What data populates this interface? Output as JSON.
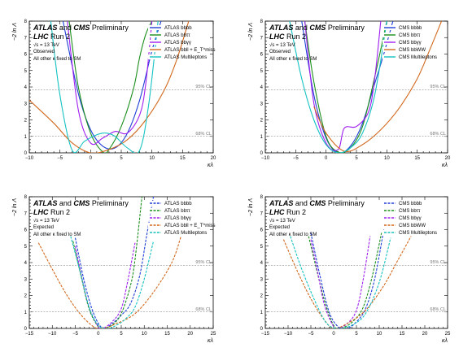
{
  "colors": {
    "bbbb": "#1f3fd6",
    "bbtautau": "#1a8f1a",
    "bbgammagamma": "#a020f0",
    "fourth": "#d2691e",
    "multileptons": "#15c2c2"
  },
  "chart_data": [
    {
      "type": "line",
      "panel": "top-left",
      "title_atlas": "ATLAS",
      "title_and": "and",
      "title_cms": "CMS",
      "title_prelim": "Preliminary",
      "title_lhc": "LHC",
      "title_run": "Run 2",
      "energy": "√s = 13 TeV",
      "status": "Observed",
      "note": "All other κ fixed to SM",
      "xlabel": "κλ",
      "ylabel": "−2 ln Λ",
      "xlim": [
        -10,
        20
      ],
      "ylim": [
        0,
        8
      ],
      "xticks": [
        "−10",
        "−5",
        "0",
        "5",
        "10",
        "15",
        "20"
      ],
      "yticks": [
        "0",
        "1",
        "2",
        "3",
        "4",
        "5",
        "6",
        "7",
        "8"
      ],
      "ref_lines": [
        {
          "y": 3.84,
          "label": "95% CL"
        },
        {
          "y": 1.0,
          "label": "68% CL"
        }
      ],
      "line_style": "solid",
      "legend": "top-right",
      "series": [
        {
          "name": "ATLAS bbbb",
          "key": "bbbb",
          "x": [
            -4.5,
            -2,
            0,
            2,
            4,
            6,
            8,
            10,
            11.5
          ],
          "y": [
            8,
            3.6,
            1.4,
            0.4,
            0.3,
            1.2,
            3.2,
            6.2,
            8
          ]
        },
        {
          "name": "ATLAS bbττ",
          "key": "bbtautau",
          "x": [
            -3.5,
            -2,
            0,
            2,
            3,
            5,
            7,
            8,
            9,
            10
          ],
          "y": [
            8,
            4.0,
            1.2,
            0.05,
            0.2,
            1.6,
            3.9,
            5.8,
            7.2,
            8
          ]
        },
        {
          "name": "ATLAS bbγγ",
          "key": "bbgammagamma",
          "x": [
            -3.8,
            -2,
            0,
            2,
            4,
            6,
            8,
            9,
            10
          ],
          "y": [
            8,
            2.6,
            0.6,
            0.9,
            1.3,
            1.2,
            2.3,
            4.2,
            8
          ]
        },
        {
          "name": "ATLAS bbll + E_T^miss",
          "key": "fourth",
          "x": [
            -10,
            -6,
            -3,
            0,
            3,
            6,
            9,
            12,
            14,
            16
          ],
          "y": [
            3.2,
            1.8,
            0.6,
            0.0,
            0.2,
            0.8,
            2.0,
            3.8,
            5.6,
            8
          ]
        },
        {
          "name": "ATLAS Multileptons",
          "key": "multileptons",
          "x": [
            -6.5,
            -5,
            -3,
            -1,
            1,
            2.5,
            4,
            6,
            8,
            9.5,
            11
          ],
          "y": [
            8,
            3.5,
            0.15,
            0.7,
            1.1,
            1.2,
            1.0,
            0.3,
            0.15,
            3.0,
            8
          ]
        }
      ]
    },
    {
      "type": "line",
      "panel": "top-right",
      "title_atlas": "ATLAS",
      "title_and": "and",
      "title_cms": "CMS",
      "title_prelim": "Preliminary",
      "title_lhc": "LHC",
      "title_run": "Run 2",
      "energy": "√s = 13 TeV",
      "status": "Observed",
      "note": "All other κ fixed to SM",
      "xlabel": "κλ",
      "ylabel": "−2 ln Λ",
      "xlim": [
        -10,
        20
      ],
      "ylim": [
        0,
        8
      ],
      "xticks": [
        "−10",
        "−5",
        "0",
        "5",
        "10",
        "15",
        "20"
      ],
      "yticks": [
        "0",
        "1",
        "2",
        "3",
        "4",
        "5",
        "6",
        "7",
        "8"
      ],
      "ref_lines": [
        {
          "y": 3.84,
          "label": "95% CL"
        },
        {
          "y": 1.0,
          "label": "68% CL"
        }
      ],
      "line_style": "solid",
      "legend": "top-right",
      "series": [
        {
          "name": "CMS bbbb",
          "key": "bbbb",
          "x": [
            -4,
            -2,
            0,
            2,
            4,
            6,
            8,
            9.5,
            11
          ],
          "y": [
            8,
            3.5,
            0.9,
            0.0,
            0.4,
            1.8,
            4.2,
            6.0,
            8
          ]
        },
        {
          "name": "CMS bbττ",
          "key": "bbtautau",
          "x": [
            -3.5,
            -2,
            0,
            2,
            4,
            6,
            8,
            10
          ],
          "y": [
            8,
            4.3,
            1.0,
            0.05,
            0.3,
            1.6,
            4.6,
            8
          ]
        },
        {
          "name": "CMS bbγγ",
          "key": "bbgammagamma",
          "x": [
            -3.5,
            -2,
            0,
            2,
            3,
            5,
            7,
            8,
            9
          ],
          "y": [
            8,
            3.0,
            0.6,
            0.2,
            1.5,
            1.6,
            2.5,
            4.5,
            8
          ]
        },
        {
          "name": "CMS bbWW",
          "key": "fourth",
          "x": [
            -2,
            0,
            3,
            6,
            9,
            12,
            15,
            17,
            19
          ],
          "y": [
            2.8,
            1.2,
            0.1,
            0.5,
            1.4,
            2.7,
            4.5,
            6.2,
            8
          ]
        },
        {
          "name": "CMS Multileptons",
          "key": "multileptons",
          "x": [
            -6,
            -4,
            -2,
            0,
            2,
            4,
            6,
            8,
            10
          ],
          "y": [
            8,
            4.5,
            2.0,
            0.5,
            0.0,
            0.3,
            1.2,
            3.5,
            8
          ]
        }
      ]
    },
    {
      "type": "line",
      "panel": "bottom-left",
      "title_atlas": "ATLAS",
      "title_and": "and",
      "title_cms": "CMS",
      "title_prelim": "Preliminary",
      "title_lhc": "LHC",
      "title_run": "Run 2",
      "energy": "√s = 13 TeV",
      "status": "Expected",
      "note": "All other κ fixed to SM",
      "xlabel": "κλ",
      "ylabel": "−2 ln Λ",
      "xlim": [
        -15,
        25
      ],
      "ylim": [
        0,
        8
      ],
      "xticks": [
        "−15",
        "−10",
        "−5",
        "0",
        "5",
        "10",
        "15",
        "20",
        "25"
      ],
      "yticks": [
        "0",
        "1",
        "2",
        "3",
        "4",
        "5",
        "6",
        "7",
        "8"
      ],
      "ref_lines": [
        {
          "y": 3.84,
          "label": "95% CL"
        },
        {
          "y": 1.0,
          "label": "68% CL"
        }
      ],
      "line_style": "dashed",
      "legend": "top-right",
      "series": [
        {
          "name": "ATLAS bbbb",
          "key": "bbbb",
          "x": [
            -5,
            -3,
            -1,
            1,
            3,
            5,
            7,
            9,
            10.5,
            12
          ],
          "y": [
            5.5,
            2.8,
            0.9,
            0.0,
            0.3,
            0.8,
            1.5,
            3.2,
            5.6,
            8
          ]
        },
        {
          "name": "ATLAS bbττ",
          "key": "bbtautau",
          "x": [
            -5.5,
            -4,
            -2,
            0,
            1,
            3,
            5,
            7,
            8,
            9.5
          ],
          "y": [
            5.3,
            3.5,
            1.2,
            0.1,
            0.0,
            0.2,
            0.9,
            2.6,
            4.2,
            8
          ]
        },
        {
          "name": "ATLAS bbγγ",
          "key": "bbgammagamma",
          "x": [
            -5,
            -3.5,
            -2,
            0,
            1,
            3,
            5,
            6.5,
            8
          ],
          "y": [
            5.0,
            3.0,
            1.3,
            0.1,
            0.0,
            0.4,
            1.2,
            3.0,
            5.2
          ]
        },
        {
          "name": "ATLAS bbll + E_T^miss",
          "key": "fourth",
          "x": [
            -13,
            -10,
            -7,
            -4,
            -1,
            1,
            4,
            8,
            12,
            16,
            18
          ],
          "y": [
            5.2,
            3.6,
            2.1,
            0.9,
            0.1,
            0.0,
            0.3,
            0.9,
            2.2,
            4.0,
            5.6
          ]
        },
        {
          "name": "ATLAS Multileptons",
          "key": "multileptons",
          "x": [
            -6,
            -4,
            -2,
            0,
            2,
            4,
            6,
            8,
            10,
            12
          ],
          "y": [
            5.6,
            3.5,
            1.3,
            0.2,
            0.0,
            0.2,
            0.6,
            1.3,
            3.0,
            5.3
          ]
        }
      ]
    },
    {
      "type": "line",
      "panel": "bottom-right",
      "title_atlas": "ATLAS",
      "title_and": "and",
      "title_cms": "CMS",
      "title_prelim": "Preliminary",
      "title_lhc": "LHC",
      "title_run": "Run 2",
      "energy": "√s = 13 TeV",
      "status": "Expected",
      "note": "All other κ fixed to SM",
      "xlabel": "κλ",
      "ylabel": "−2 ln Λ",
      "xlim": [
        -15,
        25
      ],
      "ylim": [
        0,
        8
      ],
      "xticks": [
        "−15",
        "−10",
        "−5",
        "0",
        "5",
        "10",
        "15",
        "20",
        "25"
      ],
      "yticks": [
        "0",
        "1",
        "2",
        "3",
        "4",
        "5",
        "6",
        "7",
        "8"
      ],
      "ref_lines": [
        {
          "y": 3.84,
          "label": "95% CL"
        },
        {
          "y": 1.0,
          "label": "68% CL"
        }
      ],
      "line_style": "dashed",
      "legend": "top-right",
      "series": [
        {
          "name": "CMS bbbb",
          "key": "bbbb",
          "x": [
            -5,
            -3,
            -1,
            1,
            3,
            5,
            7,
            9,
            11
          ],
          "y": [
            5.8,
            3.2,
            1.0,
            0.1,
            0.0,
            0.4,
            1.2,
            3.0,
            6.0
          ]
        },
        {
          "name": "CMS bbττ",
          "key": "bbtautau",
          "x": [
            -5.5,
            -3.5,
            -1.5,
            0.5,
            2.5,
            4.5,
            6.5,
            8.5,
            10.5
          ],
          "y": [
            5.6,
            3.3,
            1.2,
            0.0,
            0.1,
            0.5,
            1.3,
            3.2,
            5.8
          ]
        },
        {
          "name": "CMS bbγγ",
          "key": "bbgammagamma",
          "x": [
            -5,
            -3.5,
            -2,
            0,
            1,
            3,
            5,
            6.5,
            8
          ],
          "y": [
            5.4,
            3.4,
            1.4,
            0.1,
            0.0,
            0.3,
            1.1,
            3.0,
            5.6
          ]
        },
        {
          "name": "CMS bbWW",
          "key": "fourth",
          "x": [
            -11,
            -8,
            -5,
            -2,
            0,
            3,
            7,
            11,
            14,
            17
          ],
          "y": [
            5.4,
            3.5,
            1.8,
            0.5,
            0.0,
            0.3,
            1.1,
            2.6,
            4.1,
            5.6
          ]
        },
        {
          "name": "CMS Multileptons",
          "key": "multileptons",
          "x": [
            -9.5,
            -7,
            -4,
            -1.5,
            1,
            4,
            7,
            10,
            12.5
          ],
          "y": [
            5.6,
            3.6,
            1.6,
            0.3,
            0.0,
            0.2,
            0.9,
            2.8,
            5.5
          ]
        }
      ]
    }
  ]
}
